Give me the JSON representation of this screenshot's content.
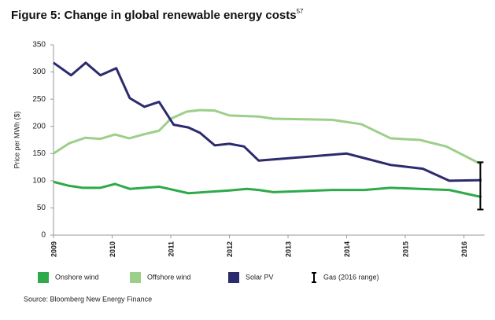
{
  "chart_data": {
    "type": "line",
    "title": "Figure 5: Change in global renewable energy costs",
    "title_note": "57",
    "y_label": "Price per MWh ($)",
    "source": "Source: Bloomberg New Energy Finance",
    "xlim": [
      2009,
      2016.35
    ],
    "xticks": [
      2009,
      2010,
      2011,
      2012,
      2013,
      2014,
      2015,
      2016
    ],
    "ylim": [
      0,
      350
    ],
    "yticks": [
      0,
      50,
      100,
      150,
      200,
      250,
      300,
      350
    ],
    "grid": false,
    "legend": "bottom",
    "series": [
      {
        "name": "Onshore wind",
        "color": "#2eaa4a",
        "x": [
          2009,
          2009.25,
          2009.5,
          2009.8,
          2010.05,
          2010.3,
          2010.8,
          2011.3,
          2012.0,
          2012.3,
          2012.5,
          2012.75,
          2013.75,
          2014.3,
          2014.75,
          2015.25,
          2015.75,
          2016.3
        ],
        "values": [
          98,
          91,
          87,
          87,
          94,
          85,
          89,
          77,
          82,
          85,
          83,
          79,
          83,
          83,
          87,
          85,
          83,
          70
        ]
      },
      {
        "name": "Offshore wind",
        "color": "#9ccf8a",
        "x": [
          2009,
          2009.27,
          2009.54,
          2009.8,
          2010.05,
          2010.29,
          2010.53,
          2010.8,
          2011.0,
          2011.27,
          2011.5,
          2011.75,
          2012.0,
          2012.5,
          2012.75,
          2013.75,
          2014.25,
          2014.75,
          2015.25,
          2015.7,
          2016.3
        ],
        "values": [
          150,
          169,
          179,
          177,
          185,
          178,
          185,
          192,
          214,
          227,
          230,
          229,
          220,
          218,
          214,
          212,
          204,
          178,
          175,
          163,
          130
        ]
      },
      {
        "name": "Solar PV",
        "color": "#2b2b6e",
        "x": [
          2009,
          2009.3,
          2009.55,
          2009.8,
          2010.07,
          2010.3,
          2010.55,
          2010.8,
          2011.05,
          2011.3,
          2011.5,
          2011.75,
          2012.0,
          2012.25,
          2012.5,
          2014.0,
          2014.25,
          2014.75,
          2015.3,
          2015.75,
          2016.3
        ],
        "values": [
          317,
          294,
          317,
          294,
          307,
          252,
          236,
          245,
          203,
          198,
          188,
          165,
          168,
          163,
          137,
          150,
          143,
          129,
          122,
          100,
          101
        ]
      }
    ],
    "gas_range": {
      "name": "Gas (2016 range)",
      "color": "#000000",
      "x": 2016.28,
      "low": 47,
      "high": 134
    }
  }
}
